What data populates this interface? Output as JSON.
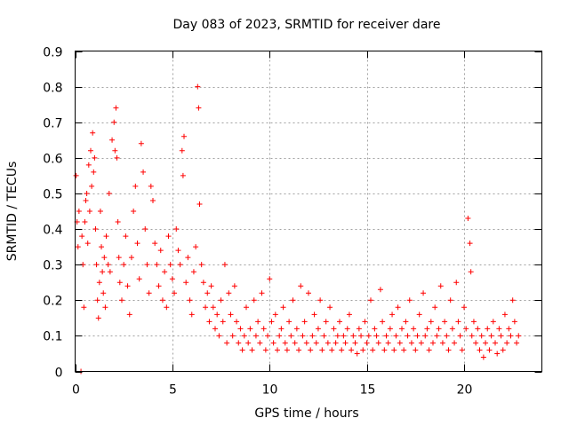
{
  "chart_data": {
    "type": "scatter",
    "title": "Day 083 of 2023, SRMTID for receiver dare",
    "xlabel": "GPS time / hours",
    "ylabel": "SRMTID / TECUs",
    "xlim": [
      0,
      24
    ],
    "ylim": [
      0,
      0.9
    ],
    "xticks": [
      0,
      5,
      10,
      15,
      20
    ],
    "xtick_labels": [
      "0",
      "5",
      "10",
      "15",
      "20"
    ],
    "yticks": [
      0,
      0.1,
      0.2,
      0.3,
      0.4,
      0.5,
      0.6,
      0.7,
      0.8,
      0.9
    ],
    "ytick_labels": [
      "0",
      "0.1",
      "0.2",
      "0.3",
      "0.4",
      "0.5",
      "0.6",
      "0.7",
      "0.8",
      "0.9"
    ],
    "grid": true,
    "marker": "+",
    "color": "#ff0000",
    "series": [
      {
        "name": "SRMTID",
        "x": [
          0.05,
          0.1,
          0.15,
          0.2,
          0.3,
          0.35,
          0.4,
          0.45,
          0.5,
          0.55,
          0.6,
          0.65,
          0.7,
          0.75,
          0.8,
          0.85,
          0.9,
          0.95,
          1.0,
          1.05,
          1.1,
          1.15,
          1.2,
          1.25,
          1.3,
          1.35,
          1.4,
          1.45,
          1.5,
          1.55,
          1.6,
          1.7,
          1.75,
          1.8,
          1.9,
          2.0,
          2.05,
          2.1,
          2.15,
          2.2,
          2.25,
          2.3,
          2.4,
          2.5,
          2.6,
          2.7,
          2.8,
          2.9,
          3.0,
          3.1,
          3.2,
          3.3,
          3.4,
          3.5,
          3.6,
          3.7,
          3.8,
          3.9,
          4.0,
          4.1,
          4.2,
          4.3,
          4.4,
          4.5,
          4.6,
          4.7,
          4.8,
          4.9,
          5.0,
          5.1,
          5.2,
          5.3,
          5.4,
          5.5,
          5.55,
          5.6,
          5.7,
          5.8,
          5.9,
          6.0,
          6.1,
          6.2,
          6.3,
          6.35,
          6.4,
          6.5,
          6.6,
          6.7,
          6.8,
          6.9,
          7.0,
          7.1,
          7.2,
          7.3,
          7.4,
          7.5,
          7.6,
          7.7,
          7.8,
          7.9,
          8.0,
          8.1,
          8.2,
          8.3,
          8.4,
          8.5,
          8.6,
          8.7,
          8.8,
          8.9,
          9.0,
          9.1,
          9.2,
          9.3,
          9.4,
          9.5,
          9.6,
          9.7,
          9.8,
          9.9,
          10.0,
          10.1,
          10.2,
          10.3,
          10.4,
          10.5,
          10.6,
          10.7,
          10.8,
          10.9,
          11.0,
          11.1,
          11.2,
          11.3,
          11.4,
          11.5,
          11.6,
          11.7,
          11.8,
          11.9,
          12.0,
          12.1,
          12.2,
          12.3,
          12.4,
          12.5,
          12.6,
          12.7,
          12.8,
          12.9,
          13.0,
          13.1,
          13.2,
          13.3,
          13.4,
          13.5,
          13.6,
          13.7,
          13.8,
          13.9,
          14.0,
          14.1,
          14.2,
          14.3,
          14.4,
          14.5,
          14.6,
          14.7,
          14.8,
          14.9,
          15.0,
          15.1,
          15.2,
          15.3,
          15.4,
          15.5,
          15.6,
          15.7,
          15.8,
          15.9,
          16.0,
          16.1,
          16.2,
          16.3,
          16.4,
          16.5,
          16.6,
          16.7,
          16.8,
          16.9,
          17.0,
          17.1,
          17.2,
          17.3,
          17.4,
          17.5,
          17.6,
          17.7,
          17.8,
          17.9,
          18.0,
          18.1,
          18.2,
          18.3,
          18.4,
          18.5,
          18.6,
          18.7,
          18.8,
          18.9,
          19.0,
          19.1,
          19.2,
          19.3,
          19.4,
          19.5,
          19.6,
          19.7,
          19.8,
          19.9,
          20.0,
          20.1,
          20.2,
          20.3,
          20.35,
          20.4,
          20.5,
          20.6,
          20.7,
          20.8,
          20.9,
          21.0,
          21.1,
          21.2,
          21.3,
          21.4,
          21.5,
          21.6,
          21.7,
          21.8,
          21.9,
          22.0,
          22.1,
          22.2,
          22.3,
          22.4,
          22.5,
          22.6,
          22.7,
          22.8
        ],
        "y": [
          0.55,
          0.42,
          0.35,
          0.45,
          0.0,
          0.38,
          0.3,
          0.18,
          0.42,
          0.48,
          0.5,
          0.36,
          0.58,
          0.45,
          0.62,
          0.52,
          0.67,
          0.56,
          0.6,
          0.4,
          0.3,
          0.2,
          0.15,
          0.25,
          0.45,
          0.35,
          0.28,
          0.22,
          0.32,
          0.18,
          0.38,
          0.3,
          0.5,
          0.28,
          0.65,
          0.7,
          0.62,
          0.74,
          0.6,
          0.42,
          0.32,
          0.25,
          0.2,
          0.3,
          0.38,
          0.24,
          0.16,
          0.32,
          0.45,
          0.52,
          0.36,
          0.26,
          0.64,
          0.56,
          0.4,
          0.3,
          0.22,
          0.52,
          0.48,
          0.36,
          0.3,
          0.24,
          0.34,
          0.2,
          0.28,
          0.18,
          0.38,
          0.3,
          0.26,
          0.22,
          0.4,
          0.34,
          0.3,
          0.62,
          0.55,
          0.66,
          0.25,
          0.32,
          0.2,
          0.16,
          0.28,
          0.35,
          0.8,
          0.74,
          0.47,
          0.3,
          0.25,
          0.18,
          0.22,
          0.14,
          0.24,
          0.18,
          0.12,
          0.16,
          0.1,
          0.2,
          0.14,
          0.3,
          0.08,
          0.22,
          0.16,
          0.1,
          0.24,
          0.14,
          0.08,
          0.12,
          0.06,
          0.1,
          0.18,
          0.08,
          0.12,
          0.06,
          0.2,
          0.1,
          0.14,
          0.08,
          0.22,
          0.12,
          0.06,
          0.1,
          0.26,
          0.14,
          0.08,
          0.16,
          0.06,
          0.1,
          0.12,
          0.18,
          0.08,
          0.06,
          0.14,
          0.1,
          0.2,
          0.08,
          0.12,
          0.06,
          0.24,
          0.1,
          0.14,
          0.08,
          0.22,
          0.06,
          0.1,
          0.16,
          0.08,
          0.12,
          0.2,
          0.06,
          0.1,
          0.14,
          0.08,
          0.18,
          0.06,
          0.12,
          0.08,
          0.1,
          0.14,
          0.06,
          0.1,
          0.08,
          0.12,
          0.16,
          0.06,
          0.1,
          0.08,
          0.05,
          0.12,
          0.1,
          0.06,
          0.14,
          0.08,
          0.1,
          0.2,
          0.06,
          0.12,
          0.1,
          0.08,
          0.23,
          0.14,
          0.06,
          0.1,
          0.08,
          0.12,
          0.16,
          0.06,
          0.1,
          0.18,
          0.08,
          0.12,
          0.06,
          0.14,
          0.1,
          0.2,
          0.08,
          0.12,
          0.06,
          0.1,
          0.16,
          0.08,
          0.22,
          0.1,
          0.12,
          0.06,
          0.14,
          0.08,
          0.18,
          0.1,
          0.12,
          0.24,
          0.08,
          0.14,
          0.1,
          0.06,
          0.2,
          0.12,
          0.08,
          0.25,
          0.14,
          0.1,
          0.06,
          0.18,
          0.12,
          0.43,
          0.36,
          0.28,
          0.1,
          0.14,
          0.08,
          0.12,
          0.06,
          0.1,
          0.04,
          0.08,
          0.12,
          0.06,
          0.1,
          0.14,
          0.08,
          0.05,
          0.12,
          0.1,
          0.06,
          0.16,
          0.08,
          0.12,
          0.1,
          0.2,
          0.14,
          0.08,
          0.1
        ]
      }
    ]
  }
}
